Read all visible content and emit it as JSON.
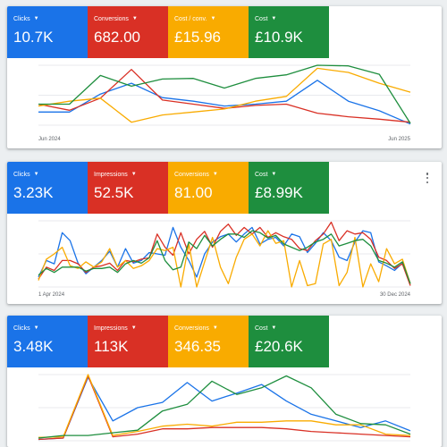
{
  "colors": {
    "blue": "#1a73e8",
    "red": "#d93025",
    "yellow": "#f9ab00",
    "green": "#1e8e3e",
    "grid": "#e8eaed",
    "card_bg": "#ffffff",
    "page_bg": "#eceff1"
  },
  "cards": [
    {
      "tiles": [
        {
          "label": "Clicks",
          "value": "10.7K",
          "color": "blue"
        },
        {
          "label": "Conversions",
          "value": "682.00",
          "color": "red"
        },
        {
          "label": "Cost / conv.",
          "value": "£15.96",
          "color": "yellow"
        },
        {
          "label": "Cost",
          "value": "£10.9K",
          "color": "green"
        }
      ],
      "menu_icon": "more-vert-icon",
      "x_start_label": "Jun 2024",
      "x_end_label": "Jun 2025"
    },
    {
      "tiles": [
        {
          "label": "Clicks",
          "value": "3.23K",
          "color": "blue"
        },
        {
          "label": "Impressions",
          "value": "52.5K",
          "color": "red"
        },
        {
          "label": "Conversions",
          "value": "81.00",
          "color": "yellow"
        },
        {
          "label": "Cost",
          "value": "£8.99K",
          "color": "green"
        }
      ],
      "menu_icon": "more-vert-icon",
      "x_start_label": "1 Apr 2024",
      "x_end_label": "30 Dec 2024"
    },
    {
      "tiles": [
        {
          "label": "Clicks",
          "value": "3.48K",
          "color": "blue"
        },
        {
          "label": "Impressions",
          "value": "113K",
          "color": "red"
        },
        {
          "label": "Conversions",
          "value": "346.35",
          "color": "yellow"
        },
        {
          "label": "Cost",
          "value": "£20.6K",
          "color": "green"
        }
      ],
      "menu_icon": "more-vert-icon",
      "x_start_label": "",
      "x_end_label": ""
    }
  ],
  "chart_data": [
    {
      "type": "line",
      "xlabel": "",
      "ylabel": "",
      "x_start": "Jun 2024",
      "x_end": "Jun 2025",
      "grid": true,
      "ylim": [
        0,
        100
      ],
      "series": [
        {
          "color": "blue",
          "values": [
            22,
            22,
            52,
            70,
            46,
            40,
            32,
            35,
            40,
            75,
            40,
            24,
            2
          ]
        },
        {
          "color": "red",
          "values": [
            35,
            25,
            45,
            93,
            42,
            35,
            28,
            33,
            35,
            20,
            14,
            10,
            5
          ]
        },
        {
          "color": "yellow",
          "values": [
            32,
            40,
            45,
            5,
            17,
            22,
            27,
            40,
            48,
            95,
            88,
            70,
            55
          ]
        },
        {
          "color": "green",
          "values": [
            35,
            35,
            83,
            65,
            77,
            78,
            62,
            78,
            84,
            100,
            99,
            85,
            3
          ]
        }
      ]
    },
    {
      "type": "line",
      "xlabel": "",
      "ylabel": "",
      "x_start": "1 Apr 2024",
      "x_end": "30 Dec 2024",
      "grid": true,
      "ylim": [
        0,
        100
      ],
      "series": [
        {
          "color": "blue",
          "values": [
            15,
            40,
            35,
            82,
            70,
            36,
            20,
            30,
            40,
            54,
            30,
            58,
            36,
            40,
            52,
            50,
            48,
            90,
            60,
            40,
            15,
            50,
            68,
            76,
            80,
            68,
            80,
            90,
            65,
            72,
            75,
            62,
            80,
            76,
            52,
            66,
            82,
            70,
            45,
            40,
            68,
            85,
            82,
            38,
            32,
            25,
            36,
            5
          ]
        },
        {
          "color": "red",
          "values": [
            12,
            30,
            25,
            40,
            40,
            35,
            22,
            30,
            32,
            36,
            25,
            40,
            38,
            42,
            44,
            80,
            60,
            48,
            82,
            50,
            72,
            84,
            60,
            84,
            95,
            78,
            90,
            80,
            90,
            75,
            82,
            76,
            72,
            58,
            55,
            70,
            80,
            98,
            70,
            85,
            80,
            82,
            72,
            45,
            40,
            28,
            35,
            2
          ]
        },
        {
          "color": "yellow",
          "values": [
            10,
            42,
            50,
            60,
            32,
            28,
            38,
            30,
            38,
            58,
            30,
            40,
            28,
            32,
            40,
            58,
            55,
            60,
            0,
            65,
            0,
            38,
            75,
            30,
            5,
            45,
            72,
            80,
            62,
            85,
            66,
            70,
            0,
            40,
            2,
            5,
            65,
            72,
            2,
            22,
            75,
            0,
            35,
            8,
            58,
            35,
            42,
            5
          ]
        },
        {
          "color": "green",
          "values": [
            18,
            28,
            22,
            30,
            30,
            30,
            24,
            28,
            28,
            30,
            22,
            35,
            40,
            36,
            44,
            70,
            40,
            26,
            30,
            68,
            58,
            78,
            62,
            72,
            80,
            80,
            75,
            85,
            82,
            74,
            78,
            65,
            60,
            55,
            60,
            68,
            72,
            80,
            62,
            66,
            70,
            72,
            62,
            40,
            36,
            30,
            38,
            5
          ]
        }
      ]
    },
    {
      "type": "line",
      "xlabel": "",
      "ylabel": "",
      "grid": true,
      "ylim": [
        0,
        100
      ],
      "series": [
        {
          "color": "blue",
          "values": [
            2,
            4,
            96,
            30,
            50,
            58,
            88,
            60,
            72,
            85,
            60,
            40,
            30,
            20,
            30,
            15
          ]
        },
        {
          "color": "red",
          "values": [
            2,
            4,
            98,
            6,
            10,
            18,
            18,
            20,
            20,
            20,
            18,
            14,
            12,
            10,
            8,
            6
          ]
        },
        {
          "color": "yellow",
          "values": [
            5,
            6,
            100,
            8,
            14,
            22,
            25,
            22,
            28,
            28,
            30,
            30,
            24,
            24,
            10,
            8
          ]
        },
        {
          "color": "green",
          "values": [
            4,
            8,
            8,
            12,
            16,
            45,
            55,
            90,
            70,
            80,
            98,
            80,
            40,
            26,
            24,
            10
          ]
        }
      ]
    }
  ]
}
